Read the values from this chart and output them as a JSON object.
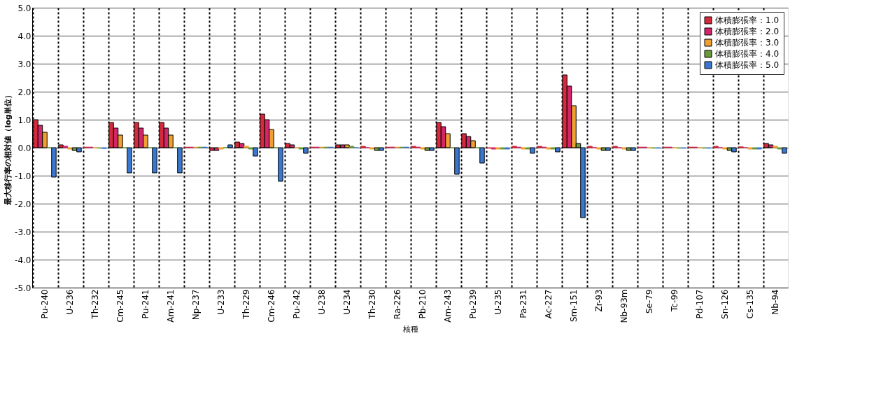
{
  "chart_data": {
    "type": "bar",
    "xlabel": "核種",
    "ylabel": "最大移行率の相対値（log単位）",
    "categories": [
      "Pu-240",
      "U-236",
      "Th-232",
      "Cm-245",
      "Pu-241",
      "Am-241",
      "Np-237",
      "U-233",
      "Th-229",
      "Cm-246",
      "Pu-242",
      "U-238",
      "U-234",
      "Th-230",
      "Ra-226",
      "Pb-210",
      "Am-243",
      "Pu-239",
      "U-235",
      "Pa-231",
      "Ac-227",
      "Sm-151",
      "Zr-93",
      "Nb-93m",
      "Se-79",
      "Tc-99",
      "Pd-107",
      "Sn-126",
      "Cs-135",
      "Nb-94"
    ],
    "series": [
      {
        "name": "体積膨張率：1.0",
        "color": "#d42a3c",
        "values": [
          1.0,
          0.1,
          0.02,
          0.9,
          0.9,
          0.9,
          0.02,
          -0.1,
          0.2,
          1.2,
          0.15,
          0.02,
          0.1,
          0.05,
          0.02,
          0.05,
          0.9,
          0.5,
          -0.02,
          0.05,
          0.05,
          2.6,
          0.05,
          0.05,
          0.02,
          0.02,
          0.02,
          0.05,
          0.03,
          0.15
        ]
      },
      {
        "name": "体積膨張率：2.0",
        "color": "#d2256a",
        "values": [
          0.8,
          0.05,
          0.02,
          0.7,
          0.7,
          0.7,
          0.02,
          -0.1,
          0.15,
          1.0,
          0.1,
          0.02,
          0.1,
          0.0,
          0.02,
          0.02,
          0.75,
          0.4,
          -0.05,
          0.02,
          0.02,
          2.2,
          0.0,
          0.0,
          0.02,
          0.02,
          0.02,
          0.0,
          0.0,
          0.1
        ]
      },
      {
        "name": "体積膨張率：3.0",
        "color": "#f0a030",
        "values": [
          0.55,
          -0.05,
          0.0,
          0.45,
          0.45,
          0.45,
          0.02,
          -0.05,
          0.05,
          0.65,
          0.0,
          0.02,
          0.1,
          -0.05,
          0.02,
          -0.05,
          0.5,
          0.25,
          -0.05,
          -0.05,
          -0.05,
          1.5,
          -0.05,
          -0.05,
          0.0,
          0.0,
          0.0,
          -0.05,
          -0.05,
          0.05
        ]
      },
      {
        "name": "体積膨張率：4.0",
        "color": "#6a9a3a",
        "values": [
          0.0,
          -0.1,
          -0.02,
          0.0,
          0.0,
          0.0,
          0.02,
          0.0,
          -0.05,
          0.0,
          -0.05,
          0.02,
          0.05,
          -0.1,
          0.02,
          -0.1,
          0.0,
          0.0,
          -0.05,
          -0.05,
          -0.05,
          0.15,
          -0.1,
          -0.1,
          -0.02,
          -0.02,
          -0.02,
          -0.1,
          -0.05,
          -0.05
        ]
      },
      {
        "name": "体積膨張率：5.0",
        "color": "#3a78d0",
        "values": [
          -1.05,
          -0.15,
          -0.03,
          -0.9,
          -0.9,
          -0.9,
          0.02,
          0.1,
          -0.3,
          -1.2,
          -0.2,
          0.02,
          0.0,
          -0.1,
          0.02,
          -0.1,
          -0.95,
          -0.55,
          -0.05,
          -0.2,
          -0.15,
          -2.5,
          -0.1,
          -0.1,
          -0.02,
          -0.02,
          -0.02,
          -0.15,
          -0.05,
          -0.2
        ]
      }
    ],
    "ylim": [
      -5.0,
      5.0
    ],
    "yticks": [
      {
        "value": -5,
        "label": "-5.0"
      },
      {
        "value": -4,
        "label": "-4.0"
      },
      {
        "value": -3,
        "label": "-3.0"
      },
      {
        "value": -2,
        "label": "-2.0"
      },
      {
        "value": -1,
        "label": "-1.0"
      },
      {
        "value": 0,
        "label": "0.0"
      },
      {
        "value": 1,
        "label": "1.0"
      },
      {
        "value": 2,
        "label": "2.0"
      },
      {
        "value": 3,
        "label": "3.0"
      },
      {
        "value": 4,
        "label": "4.0"
      },
      {
        "value": 5,
        "label": "5.0"
      }
    ],
    "grid": true,
    "legend": "top right"
  }
}
